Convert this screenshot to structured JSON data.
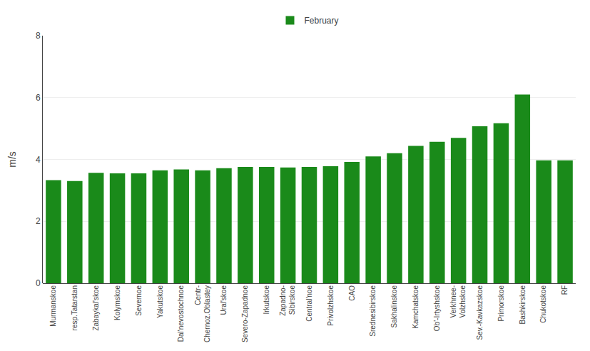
{
  "chart_data": {
    "type": "bar",
    "categories": [
      "Murmanskoe",
      "resp.Tatarstan",
      "Zabaykal'skoe",
      "Kolymskoe",
      "Severnoe",
      "Yakutskoe",
      "Dal'nevostochnoe",
      "Centr-\nChernoz.Oblastey",
      "Ural'skoe",
      "Severo-Zapadnoe",
      "Irkutskoe",
      "Zapadno-\nSibirskoe",
      "Central'noe",
      "Privolzhskoe",
      "CAO",
      "Srednesibirskoe",
      "Sakhalinskoe",
      "Kamchatskoe",
      "Ob'-Irtyshskoe",
      "Verkhnee-\nVolzhskoe",
      "Sev.-Kavkazskoe",
      "Primorskoe",
      "Bashkirskoe",
      "Chukotskoe",
      "RF"
    ],
    "series": [
      {
        "name": "February",
        "color": "#1a8a1a",
        "values": [
          3.33,
          3.3,
          3.57,
          3.55,
          3.55,
          3.65,
          3.68,
          3.65,
          3.72,
          3.76,
          3.76,
          3.74,
          3.76,
          3.78,
          3.92,
          4.1,
          4.2,
          4.44,
          4.57,
          4.7,
          5.07,
          5.17,
          6.1,
          3.97,
          3.97
        ]
      }
    ],
    "ylabel": "m/s",
    "ylim": [
      0,
      8
    ],
    "yticks": [
      0,
      2,
      4,
      6,
      8
    ],
    "grid": true,
    "legend": "top"
  }
}
